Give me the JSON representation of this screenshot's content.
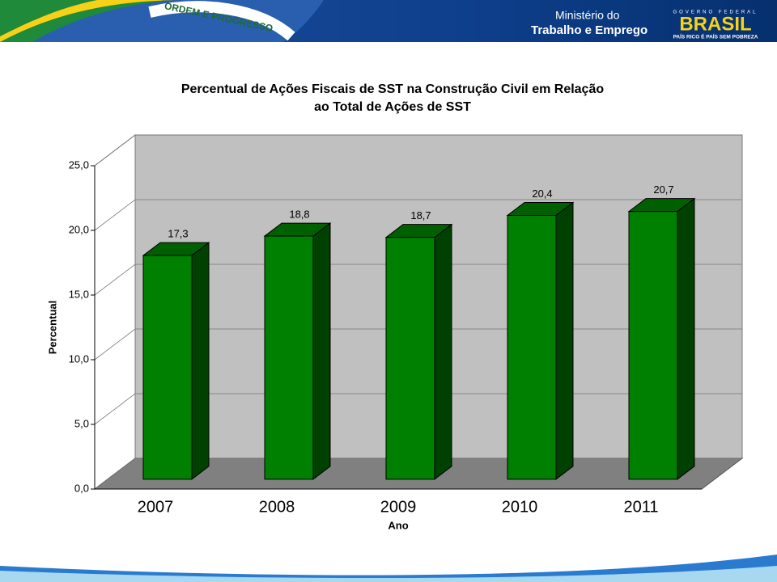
{
  "header": {
    "motto": "ORDEM E PROGRESSO",
    "ministry_line1": "Ministério do",
    "ministry_line2": "Trabalho e Emprego",
    "gov": "GOVERNO FEDERAL",
    "brand": "BRASIL",
    "slogan": "PAÍS RICO É PAÍS SEM POBREZA"
  },
  "chart_data": {
    "type": "bar3d",
    "title": "Percentual de Ações Fiscais de SST na Construção Civil em Relação ao Total de Ações de SST",
    "x_label": "Ano",
    "y_label": "Percentual",
    "categories": [
      "2007",
      "2008",
      "2009",
      "2010",
      "2011"
    ],
    "values": [
      17.3,
      18.8,
      18.7,
      20.4,
      20.7
    ],
    "value_labels": [
      "17,3",
      "18,8",
      "18,7",
      "20,4",
      "20,7"
    ],
    "color": "#008000",
    "ylim": [
      0,
      25
    ],
    "yticks": [
      {
        "value": 0,
        "label": "0,0"
      },
      {
        "value": 5,
        "label": "5,0"
      },
      {
        "value": 10,
        "label": "10,0"
      },
      {
        "value": 15,
        "label": "15,0"
      },
      {
        "value": 20,
        "label": "20,0"
      },
      {
        "value": 25,
        "label": "25,0"
      }
    ],
    "grid": true
  }
}
